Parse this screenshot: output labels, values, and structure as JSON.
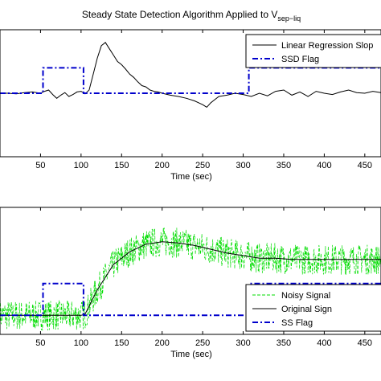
{
  "figure": {
    "title": "Steady State Detection Algorithm Applied to V",
    "title_subscript": "sep−liq"
  },
  "chart_data": [
    {
      "type": "line",
      "title": "Steady State Detection Algorithm Applied to V sep−liq",
      "xlabel": "Time (sec)",
      "ylabel": "",
      "xlim": [
        0,
        470
      ],
      "xticks": [
        50,
        100,
        150,
        200,
        250,
        300,
        350,
        400,
        450
      ],
      "ylim": [
        -1,
        1
      ],
      "grid": false,
      "legend_position": "top-right",
      "legend": [
        "Linear Regression Slop",
        "SSD Flag"
      ],
      "series": [
        {
          "name": "Linear Regression Slop",
          "color": "#000000",
          "style": "solid",
          "x": [
            0,
            10,
            20,
            30,
            40,
            50,
            55,
            60,
            65,
            70,
            75,
            80,
            85,
            90,
            95,
            100,
            105,
            110,
            115,
            120,
            125,
            130,
            135,
            140,
            145,
            150,
            155,
            160,
            165,
            170,
            175,
            180,
            185,
            190,
            195,
            200,
            210,
            220,
            230,
            240,
            250,
            255,
            260,
            265,
            270,
            280,
            290,
            300,
            310,
            320,
            330,
            340,
            350,
            360,
            370,
            380,
            390,
            400,
            410,
            420,
            430,
            440,
            450,
            460,
            470
          ],
          "y": [
            0.0,
            0.0,
            -0.01,
            0.01,
            0.02,
            0.0,
            0.03,
            0.05,
            -0.02,
            -0.08,
            -0.03,
            0.01,
            -0.05,
            -0.02,
            0.02,
            0.03,
            -0.01,
            0.05,
            0.3,
            0.55,
            0.75,
            0.8,
            0.7,
            0.6,
            0.5,
            0.45,
            0.38,
            0.3,
            0.25,
            0.18,
            0.12,
            0.1,
            0.05,
            0.03,
            0.02,
            0.0,
            -0.03,
            -0.05,
            -0.08,
            -0.12,
            -0.18,
            -0.22,
            -0.15,
            -0.1,
            -0.05,
            -0.03,
            0.0,
            -0.02,
            -0.05,
            0.0,
            -0.04,
            0.03,
            0.05,
            -0.03,
            0.02,
            -0.05,
            0.03,
            0.0,
            -0.02,
            0.02,
            0.05,
            0.01,
            0.0,
            0.03,
            0.01
          ]
        },
        {
          "name": "SSD Flag",
          "color": "#0000cc",
          "style": "dashdot",
          "x": [
            0,
            53,
            53,
            103,
            103,
            307,
            307,
            470
          ],
          "y": [
            0,
            0,
            0.4,
            0.4,
            0,
            0,
            0.4,
            0.4
          ]
        }
      ]
    },
    {
      "type": "line",
      "title": "",
      "xlabel": "Time (sec)",
      "ylabel": "",
      "xlim": [
        0,
        470
      ],
      "xticks": [
        50,
        100,
        150,
        200,
        250,
        300,
        350,
        400,
        450
      ],
      "ylim": [
        0,
        1
      ],
      "grid": false,
      "legend_position": "bottom-right",
      "legend": [
        "Noisy Signal",
        "Original Sign",
        "SS Flag"
      ],
      "series": [
        {
          "name": "Noisy Signal",
          "color": "#00dd00",
          "style": "dashed",
          "noise_amplitude": 0.12,
          "x": [
            0,
            50,
            100,
            105,
            120,
            140,
            160,
            180,
            200,
            220,
            240,
            260,
            280,
            300,
            320,
            340,
            360,
            380,
            400,
            420,
            440,
            460,
            470
          ],
          "y": [
            0.15,
            0.15,
            0.15,
            0.16,
            0.35,
            0.55,
            0.65,
            0.71,
            0.73,
            0.72,
            0.7,
            0.67,
            0.64,
            0.62,
            0.6,
            0.6,
            0.59,
            0.59,
            0.59,
            0.59,
            0.59,
            0.59,
            0.59
          ]
        },
        {
          "name": "Original Sign",
          "color": "#000000",
          "style": "solid",
          "x": [
            0,
            50,
            100,
            105,
            120,
            140,
            160,
            180,
            200,
            220,
            240,
            260,
            280,
            300,
            320,
            340,
            360,
            380,
            400,
            420,
            440,
            460,
            470
          ],
          "y": [
            0.15,
            0.15,
            0.15,
            0.16,
            0.35,
            0.55,
            0.65,
            0.71,
            0.73,
            0.72,
            0.7,
            0.67,
            0.64,
            0.62,
            0.6,
            0.6,
            0.59,
            0.59,
            0.59,
            0.59,
            0.59,
            0.59,
            0.59
          ]
        },
        {
          "name": "SS Flag",
          "color": "#0000cc",
          "style": "dashdot",
          "x": [
            0,
            53,
            53,
            103,
            103,
            307,
            307,
            470
          ],
          "y": [
            0.15,
            0.15,
            0.4,
            0.4,
            0.15,
            0.15,
            0.4,
            0.4
          ]
        }
      ]
    }
  ]
}
